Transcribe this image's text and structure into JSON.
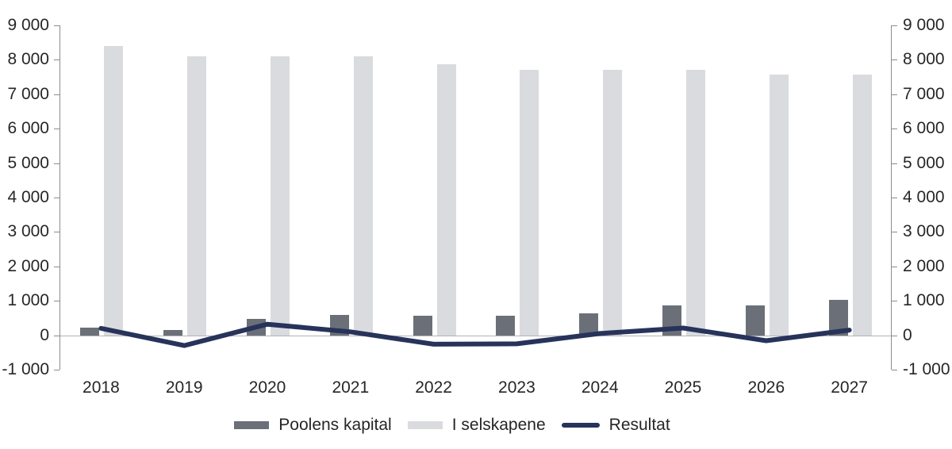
{
  "chart_data": {
    "type": "combo",
    "title": "",
    "xlabel": "",
    "ylabel": "",
    "categories": [
      "2018",
      "2019",
      "2020",
      "2021",
      "2022",
      "2023",
      "2024",
      "2025",
      "2026",
      "2027"
    ],
    "series": [
      {
        "name": "Poolens kapital",
        "kind": "bar",
        "color": "#6b7078",
        "values": [
          230,
          150,
          480,
          580,
          570,
          570,
          640,
          870,
          870,
          1040
        ]
      },
      {
        "name": "I selskapene",
        "kind": "bar",
        "color": "#d9dbde",
        "values": [
          8400,
          8100,
          8100,
          8100,
          7880,
          7700,
          7700,
          7700,
          7580,
          7580
        ]
      },
      {
        "name": "Resultat",
        "kind": "line",
        "color": "#27335a",
        "values": [
          200,
          -300,
          320,
          100,
          -260,
          -250,
          50,
          210,
          -160,
          150
        ]
      }
    ],
    "ylim": [
      -1000,
      9000
    ],
    "yticks": [
      9000,
      8000,
      7000,
      6000,
      5000,
      4000,
      3000,
      2000,
      1000,
      0,
      -1000
    ],
    "ytick_labels": [
      "9 000",
      "8 000",
      "7 000",
      "6 000",
      "5 000",
      "4 000",
      "3 000",
      "2 000",
      "1 000",
      "0",
      "-1 000"
    ],
    "y_axis_sides": [
      "left",
      "right"
    ],
    "grid": "zero line only",
    "legend_position": "bottom",
    "colors": {
      "axis_line": "#8c8c8c",
      "zero_line": "#b3b3b6",
      "text": "#262626",
      "background": "#ffffff"
    }
  }
}
